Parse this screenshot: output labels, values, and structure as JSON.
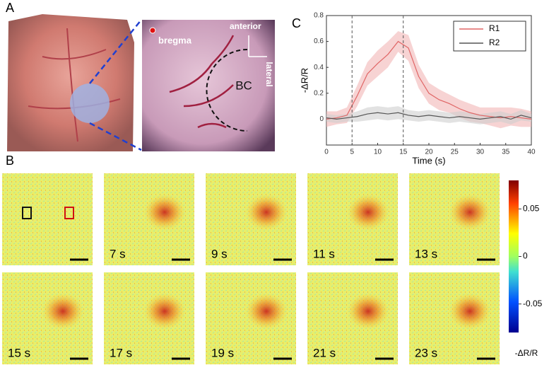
{
  "panel_labels": {
    "a": "A",
    "b": "B",
    "c": "C"
  },
  "panel_a": {
    "bregma": "bregma",
    "anterior": "anterior",
    "lateral": "lateral",
    "region": "BC"
  },
  "chart_data": {
    "type": "line",
    "xlabel": "Time (s)",
    "ylabel": "-ΔR/R",
    "x": [
      0,
      2,
      4,
      6,
      8,
      10,
      12,
      14,
      16,
      18,
      20,
      22,
      24,
      26,
      28,
      30,
      32,
      34,
      36,
      38,
      40
    ],
    "series": [
      {
        "name": "R1",
        "color": "#e06666",
        "band_color": "#f2b6b6",
        "values": [
          0.0,
          0.01,
          0.03,
          0.18,
          0.35,
          0.43,
          0.5,
          0.6,
          0.55,
          0.33,
          0.2,
          0.15,
          0.12,
          0.08,
          0.05,
          0.03,
          0.02,
          0.01,
          0.02,
          0.01,
          0.0
        ],
        "errors": [
          0.06,
          0.05,
          0.06,
          0.08,
          0.09,
          0.1,
          0.1,
          0.08,
          0.1,
          0.09,
          0.08,
          0.08,
          0.07,
          0.07,
          0.07,
          0.06,
          0.07,
          0.08,
          0.07,
          0.07,
          0.06
        ]
      },
      {
        "name": "R2",
        "color": "#555555",
        "band_color": "#cfcfcf",
        "values": [
          0.01,
          0.0,
          0.01,
          0.02,
          0.04,
          0.05,
          0.04,
          0.05,
          0.03,
          0.02,
          0.03,
          0.02,
          0.01,
          0.02,
          0.01,
          0.0,
          0.01,
          0.02,
          0.0,
          0.03,
          0.01
        ],
        "errors": [
          0.03,
          0.03,
          0.03,
          0.04,
          0.05,
          0.05,
          0.05,
          0.05,
          0.04,
          0.04,
          0.04,
          0.04,
          0.04,
          0.04,
          0.04,
          0.04,
          0.04,
          0.04,
          0.04,
          0.04,
          0.03
        ]
      }
    ],
    "vlines": [
      5,
      15
    ],
    "xlim": [
      0,
      40
    ],
    "xticks": [
      0,
      5,
      10,
      15,
      20,
      25,
      30,
      35,
      40
    ],
    "ylim": [
      -0.2,
      0.8
    ],
    "yticks": [
      0,
      0.2,
      0.4,
      0.6,
      0.8
    ],
    "legend": "upper right"
  },
  "panel_b": {
    "frames": [
      null,
      "7 s",
      "9 s",
      "11 s",
      "13 s",
      "15 s",
      "17 s",
      "19 s",
      "21 s",
      "23 s"
    ],
    "colorbar": {
      "lim": [
        -0.08,
        0.08
      ],
      "ticks": [
        0.05,
        0,
        -0.05
      ],
      "label": "-ΔR/R"
    }
  }
}
